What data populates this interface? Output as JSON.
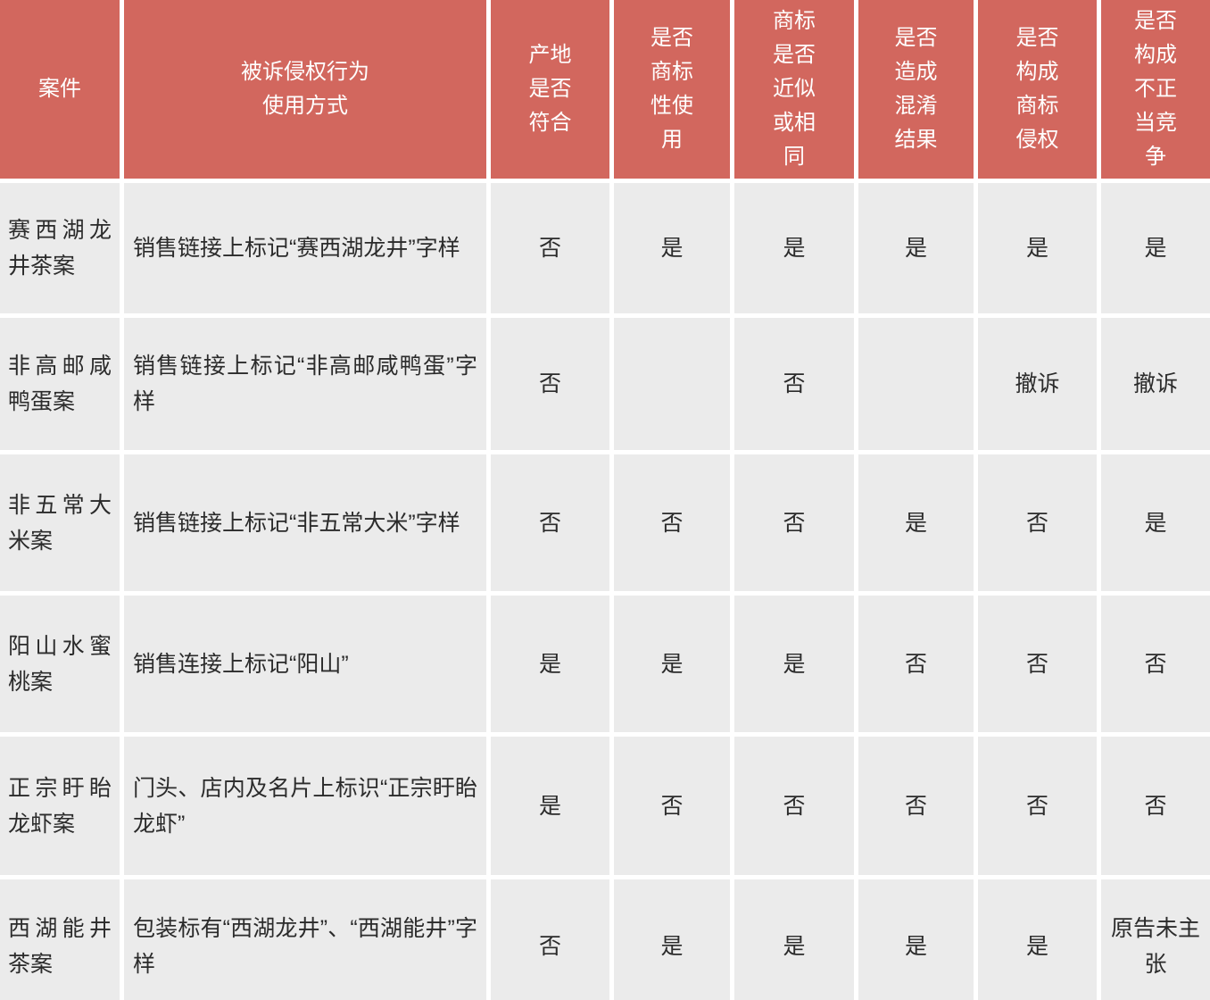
{
  "chart_data": {
    "type": "table",
    "legend_position": "none",
    "grid": "white 5px gaps between cells",
    "columns": [
      "案件",
      "被诉侵权行为\n使用方式",
      "产地是否符合",
      "是否商标性使用",
      "商标是否近似或相同",
      "是否造成混淆结果",
      "是否构成商标侵权",
      "是否构成不正当竞争"
    ],
    "rows": [
      [
        "赛西湖龙井茶案",
        "销售链接上标记“赛西湖龙井”字样",
        "否",
        "是",
        "是",
        "是",
        "是",
        "是"
      ],
      [
        "非高邮咸鸭蛋案",
        "销售链接上标记“非高邮咸鸭蛋”字样",
        "否",
        "",
        "否",
        "",
        "撤诉",
        "撤诉"
      ],
      [
        "非五常大米案",
        "销售链接上标记“非五常大米”字样",
        "否",
        "否",
        "否",
        "是",
        "否",
        "是"
      ],
      [
        "阳山水蜜桃案",
        "销售连接上标记“阳山”",
        "是",
        "是",
        "是",
        "否",
        "否",
        "否"
      ],
      [
        "正宗盱眙龙虾案",
        "门头、店内及名片上标识“正宗盱眙龙虾”",
        "是",
        "否",
        "否",
        "否",
        "否",
        "否"
      ],
      [
        "西湖能井茶案",
        "包装标有“西湖龙井”、“西湖能井”字样",
        "否",
        "是",
        "是",
        "是",
        "是",
        "原告未主张"
      ]
    ],
    "colors": {
      "header_bg": "#d2675e",
      "header_text": "#ffffff",
      "cell_bg": "#ebebeb",
      "gap": "#ffffff",
      "body_text": "#2b2b2b"
    }
  }
}
